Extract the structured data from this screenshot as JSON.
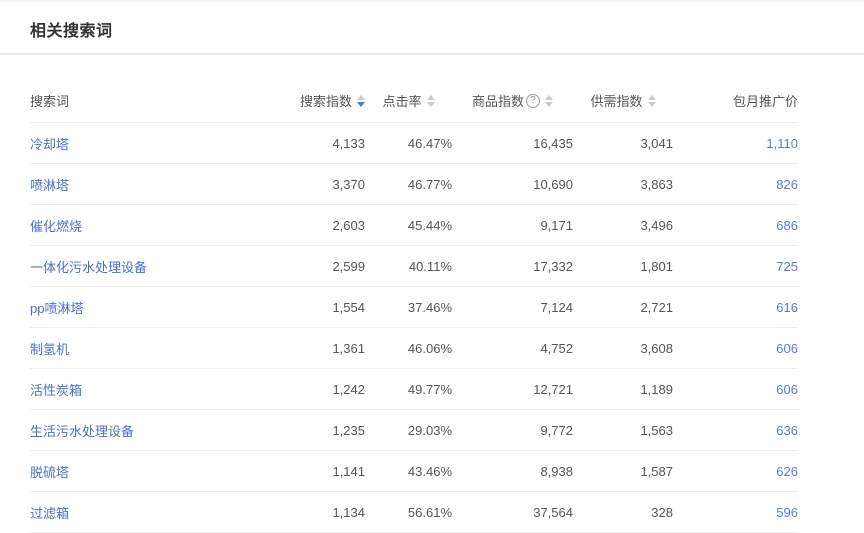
{
  "page": {
    "title": "相关搜索词"
  },
  "colors": {
    "keyword_link": "#4a71c8",
    "price_link": "#5a7ad8",
    "active_sort_caret": "#3e7bf0",
    "inactive_sort_caret": "#c8cbd1",
    "title_text": "#333333",
    "body_text": "#555555"
  },
  "icons": {
    "help_glyph": "?",
    "sorter": "caret-up-down"
  },
  "table": {
    "columns": [
      {
        "key": "keyword",
        "label": "搜索词",
        "sortable": false,
        "help": false,
        "sort": null
      },
      {
        "key": "search_index",
        "label": "搜索指数",
        "sortable": true,
        "help": false,
        "sort": "desc"
      },
      {
        "key": "ctr",
        "label": "点击率",
        "sortable": true,
        "help": false,
        "sort": null
      },
      {
        "key": "product_index",
        "label": "商品指数",
        "sortable": true,
        "help": true,
        "sort": null
      },
      {
        "key": "supply_demand",
        "label": "供需指数",
        "sortable": true,
        "help": false,
        "sort": null
      },
      {
        "key": "monthly_price",
        "label": "包月推广价",
        "sortable": false,
        "help": false,
        "sort": null
      }
    ],
    "rows": [
      {
        "keyword": "冷却塔",
        "search_index": "4,133",
        "ctr": "46.47%",
        "product_index": "16,435",
        "supply_demand": "3,041",
        "monthly_price": "1,110"
      },
      {
        "keyword": "喷淋塔",
        "search_index": "3,370",
        "ctr": "46.77%",
        "product_index": "10,690",
        "supply_demand": "3,863",
        "monthly_price": "826"
      },
      {
        "keyword": "催化燃烧",
        "search_index": "2,603",
        "ctr": "45.44%",
        "product_index": "9,171",
        "supply_demand": "3,496",
        "monthly_price": "686"
      },
      {
        "keyword": "一体化污水处理设备",
        "search_index": "2,599",
        "ctr": "40.11%",
        "product_index": "17,332",
        "supply_demand": "1,801",
        "monthly_price": "725"
      },
      {
        "keyword": "pp喷淋塔",
        "search_index": "1,554",
        "ctr": "37.46%",
        "product_index": "7,124",
        "supply_demand": "2,721",
        "monthly_price": "616"
      },
      {
        "keyword": "制氢机",
        "search_index": "1,361",
        "ctr": "46.06%",
        "product_index": "4,752",
        "supply_demand": "3,608",
        "monthly_price": "606"
      },
      {
        "keyword": "活性炭箱",
        "search_index": "1,242",
        "ctr": "49.77%",
        "product_index": "12,721",
        "supply_demand": "1,189",
        "monthly_price": "606"
      },
      {
        "keyword": "生活污水处理设备",
        "search_index": "1,235",
        "ctr": "29.03%",
        "product_index": "9,772",
        "supply_demand": "1,563",
        "monthly_price": "636"
      },
      {
        "keyword": "脱硫塔",
        "search_index": "1,141",
        "ctr": "43.46%",
        "product_index": "8,938",
        "supply_demand": "1,587",
        "monthly_price": "626"
      },
      {
        "keyword": "过滤箱",
        "search_index": "1,134",
        "ctr": "56.61%",
        "product_index": "37,564",
        "supply_demand": "328",
        "monthly_price": "596"
      }
    ]
  }
}
